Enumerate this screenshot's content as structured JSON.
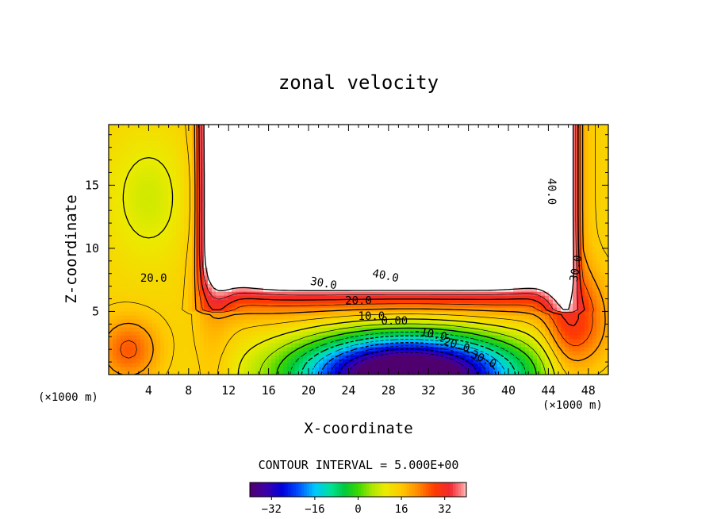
{
  "chart_data": {
    "type": "heatmap",
    "title": "zonal velocity",
    "xlabel": "X-coordinate",
    "ylabel": "Z-coordinate",
    "x_unit": "(×1000 m)",
    "y_unit": "(×1000 m)",
    "xlim": [
      0,
      50
    ],
    "ylim": [
      0,
      19.8
    ],
    "x_ticks": [
      "4",
      "8",
      "12",
      "16",
      "20",
      "24",
      "28",
      "32",
      "36",
      "40",
      "44",
      "48"
    ],
    "y_ticks": [
      "5",
      "10",
      "15"
    ],
    "contour_interval_label": "CONTOUR INTERVAL = 5.000E+00",
    "contour_interval": 5,
    "contour_labels": [
      "40.0",
      "30.0",
      "20.0",
      "10.0",
      "0.00",
      "-10.0",
      "-20.0",
      "-30.0",
      "20.0",
      "40.0",
      "30.0"
    ],
    "colorbar": {
      "range": [
        -40,
        40
      ],
      "ticks": [
        "-32",
        "-16",
        "0",
        "16",
        "32"
      ],
      "blank_above": 40
    },
    "description_fields": {
      "max_region": "white (>40) over x 11-44, z 7-20",
      "min_region": "around x 30, z 0-1 (< -30)"
    }
  }
}
